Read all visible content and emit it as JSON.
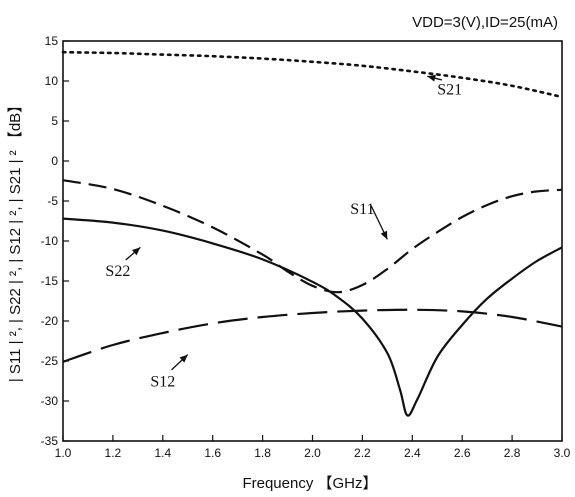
{
  "chart_data": {
    "type": "line",
    "title": "",
    "condition_label": "VDD=3(V),ID=25(mA)",
    "xlabel": "Frequency 【GHz】",
    "ylabel": "| S11 | ², | S22 | ², | S12 | ², | S21 | ² 【dB】",
    "xlim": [
      1.0,
      3.0
    ],
    "ylim": [
      -35,
      15
    ],
    "xticks": [
      "1.0",
      "1.2",
      "1.4",
      "1.6",
      "1.8",
      "2.0",
      "2.2",
      "2.4",
      "2.6",
      "2.8",
      "3.0"
    ],
    "yticks": [
      "15",
      "10",
      "5",
      "0",
      "-5",
      "-10",
      "-15",
      "-20",
      "-25",
      "-30",
      "-35"
    ],
    "grid": false,
    "series": [
      {
        "name": "S21",
        "style": "dotted",
        "x": [
          1.0,
          1.2,
          1.4,
          1.6,
          1.8,
          2.0,
          2.2,
          2.4,
          2.6,
          2.8,
          3.0
        ],
        "y": [
          13.6,
          13.5,
          13.3,
          13.1,
          12.8,
          12.4,
          11.9,
          11.2,
          10.4,
          9.4,
          8.0
        ]
      },
      {
        "name": "S11",
        "style": "dashed",
        "x": [
          1.0,
          1.2,
          1.4,
          1.6,
          1.8,
          1.9,
          2.0,
          2.1,
          2.2,
          2.3,
          2.4,
          2.5,
          2.6,
          2.7,
          2.8,
          2.9,
          3.0
        ],
        "y": [
          -2.4,
          -3.5,
          -5.6,
          -8.3,
          -11.7,
          -13.8,
          -15.6,
          -16.4,
          -15.5,
          -13.5,
          -11.0,
          -8.9,
          -7.0,
          -5.5,
          -4.4,
          -3.8,
          -3.6
        ]
      },
      {
        "name": "S22",
        "style": "solid",
        "x": [
          1.0,
          1.2,
          1.4,
          1.6,
          1.8,
          2.0,
          2.1,
          2.2,
          2.3,
          2.35,
          2.38,
          2.42,
          2.5,
          2.6,
          2.7,
          2.8,
          2.9,
          3.0
        ],
        "y": [
          -7.2,
          -7.7,
          -8.7,
          -10.3,
          -12.3,
          -15.1,
          -17.0,
          -19.7,
          -24.0,
          -28.5,
          -31.8,
          -29.8,
          -24.5,
          -20.5,
          -17.2,
          -14.7,
          -12.5,
          -10.8
        ]
      },
      {
        "name": "S12",
        "style": "long-dashed",
        "x": [
          1.0,
          1.2,
          1.4,
          1.6,
          1.8,
          2.0,
          2.2,
          2.4,
          2.6,
          2.8,
          3.0
        ],
        "y": [
          -25.1,
          -23.0,
          -21.5,
          -20.3,
          -19.5,
          -19.0,
          -18.7,
          -18.6,
          -18.8,
          -19.5,
          -20.7
        ]
      }
    ],
    "annotations": [
      {
        "text": "S21",
        "series": "S21",
        "at": [
          2.55,
          8.3
        ],
        "arrow_to": [
          2.46,
          10.6
        ]
      },
      {
        "text": "S11",
        "series": "S11",
        "at": [
          2.2,
          -6.6
        ],
        "arrow_to": [
          2.3,
          -9.8
        ]
      },
      {
        "text": "S22",
        "series": "S22",
        "at": [
          1.22,
          -14.4
        ],
        "arrow_to": [
          1.31,
          -10.8
        ]
      },
      {
        "text": "S12",
        "series": "S12",
        "at": [
          1.4,
          -28.2
        ],
        "arrow_to": [
          1.5,
          -24.2
        ]
      }
    ]
  }
}
